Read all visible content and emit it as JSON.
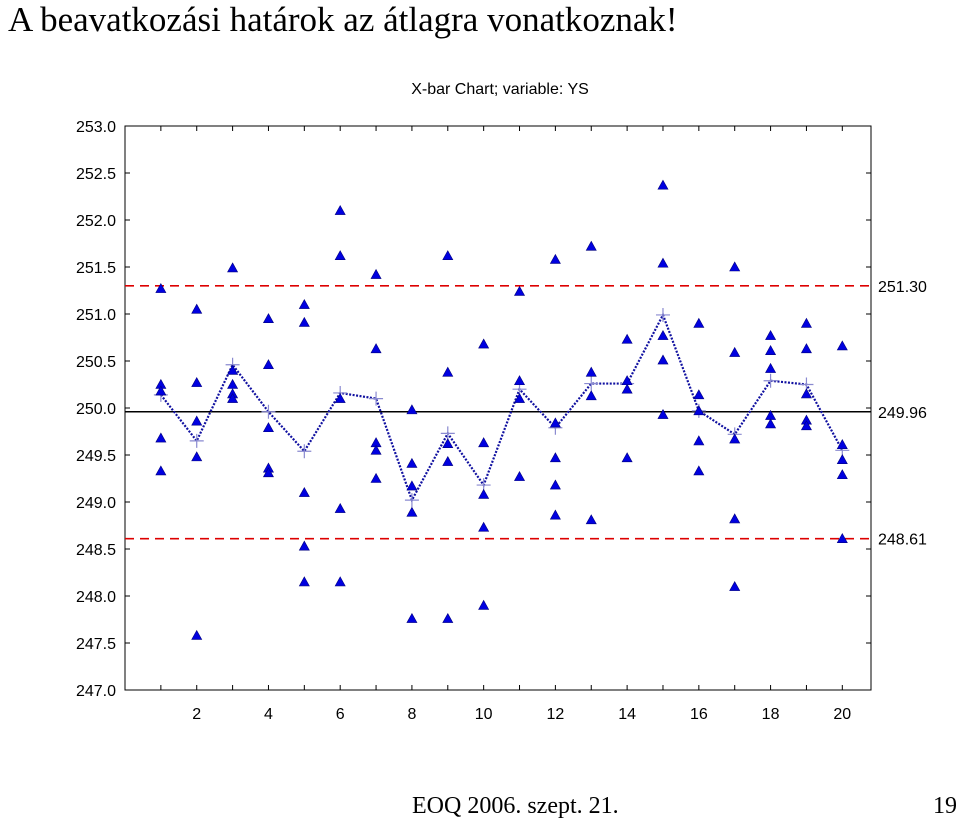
{
  "slide": {
    "title": "A beavatkozási határok az átlagra vonatkoznak!",
    "footer": "EOQ 2006. szept. 21.",
    "page_number": "19"
  },
  "chart_data": {
    "type": "scatter",
    "title": "X-bar Chart; variable:  YS",
    "xlabel": "",
    "ylabel": "",
    "xlim": [
      0,
      20.8
    ],
    "ylim": [
      247.0,
      253.0
    ],
    "xticks": [
      "2",
      "4",
      "6",
      "8",
      "10",
      "12",
      "14",
      "16",
      "18",
      "20"
    ],
    "yticks": [
      "247.0",
      "247.5",
      "248.0",
      "248.5",
      "249.0",
      "249.5",
      "250.0",
      "250.5",
      "251.0",
      "251.5",
      "252.0",
      "252.5",
      "253.0"
    ],
    "control_limits": {
      "ucl": 251.3,
      "center": 249.96,
      "lcl": 248.61,
      "ucl_label": "251.30",
      "center_label": "249.96",
      "lcl_label": "248.61"
    },
    "colors": {
      "points": "#0000e0",
      "mean_line": "#1010a0",
      "limit_line": "#dd0000",
      "center_line": "#000000"
    },
    "grid": false,
    "observations": [
      {
        "x": 1,
        "y": [
          251.27,
          250.25,
          250.18,
          249.68,
          249.33
        ]
      },
      {
        "x": 2,
        "y": [
          251.05,
          250.27,
          249.86,
          249.48,
          247.58
        ]
      },
      {
        "x": 3,
        "y": [
          251.49,
          250.4,
          250.25,
          250.15,
          250.1
        ]
      },
      {
        "x": 4,
        "y": [
          250.95,
          250.46,
          249.79,
          249.36,
          249.31
        ]
      },
      {
        "x": 5,
        "y": [
          251.1,
          250.91,
          249.1,
          248.53,
          248.15
        ]
      },
      {
        "x": 6,
        "y": [
          252.1,
          251.62,
          250.1,
          248.93,
          248.15
        ]
      },
      {
        "x": 7,
        "y": [
          251.42,
          250.63,
          249.63,
          249.55,
          249.25
        ]
      },
      {
        "x": 8,
        "y": [
          249.98,
          249.41,
          249.17,
          248.89,
          247.76
        ]
      },
      {
        "x": 9,
        "y": [
          251.62,
          250.38,
          249.62,
          249.43,
          247.76
        ]
      },
      {
        "x": 10,
        "y": [
          250.68,
          249.63,
          249.08,
          248.73,
          247.9
        ]
      },
      {
        "x": 11,
        "y": [
          251.24,
          250.29,
          250.1,
          249.27
        ]
      },
      {
        "x": 12,
        "y": [
          251.58,
          249.84,
          249.47,
          249.18,
          248.86
        ]
      },
      {
        "x": 13,
        "y": [
          251.72,
          250.38,
          250.13,
          248.81
        ]
      },
      {
        "x": 14,
        "y": [
          250.73,
          250.29,
          250.2,
          249.47
        ]
      },
      {
        "x": 15,
        "y": [
          252.37,
          251.54,
          250.77,
          250.51,
          249.93
        ]
      },
      {
        "x": 16,
        "y": [
          250.9,
          250.14,
          249.97,
          249.65,
          249.33
        ]
      },
      {
        "x": 17,
        "y": [
          251.5,
          250.59,
          249.67,
          248.82,
          248.1
        ]
      },
      {
        "x": 18,
        "y": [
          250.77,
          250.61,
          250.42,
          249.92,
          249.83
        ]
      },
      {
        "x": 19,
        "y": [
          250.9,
          250.63,
          250.15,
          249.87,
          249.81
        ]
      },
      {
        "x": 20,
        "y": [
          250.66,
          249.61,
          249.45,
          249.29,
          248.61
        ]
      }
    ],
    "means": [
      250.14,
      249.65,
      250.46,
      249.96,
      249.54,
      250.16,
      250.1,
      249.02,
      249.73,
      249.18,
      250.2,
      249.79,
      250.26,
      250.26,
      250.99,
      249.97,
      249.72,
      250.29,
      250.25,
      249.55
    ]
  }
}
